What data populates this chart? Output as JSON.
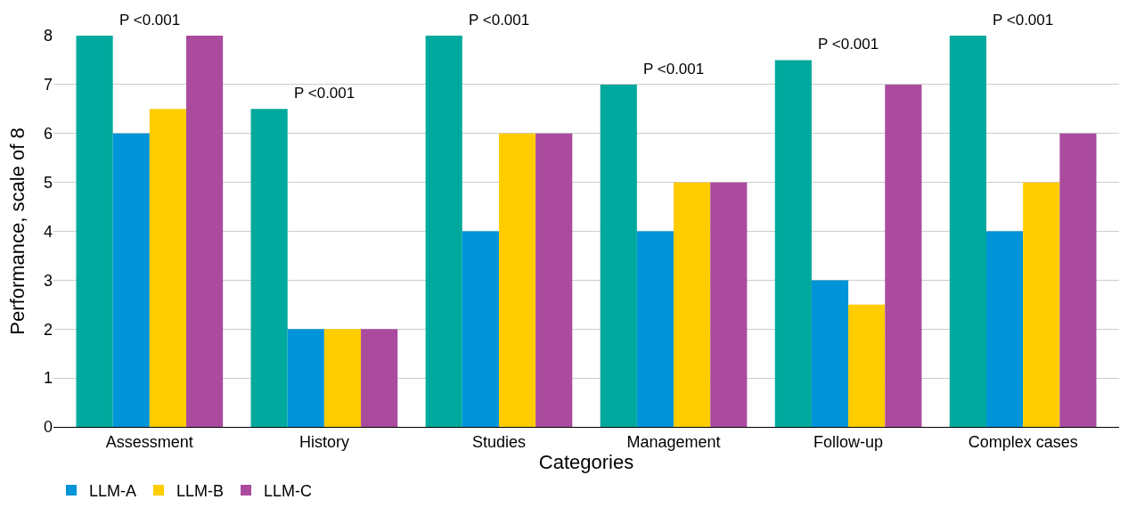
{
  "chart_data": {
    "type": "bar",
    "xlabel": "Categories",
    "ylabel": "Performance, scale of 8",
    "categories": [
      "Assessment",
      "History",
      "Studies",
      "Management",
      "Follow-up",
      "Complex cases"
    ],
    "series": [
      {
        "color": "#00a99d",
        "values": [
          8,
          6.5,
          8,
          7,
          7.5,
          8
        ]
      },
      {
        "name": "LLM-A",
        "color": "#0094d8",
        "values": [
          6,
          2,
          4,
          4,
          3,
          4
        ]
      },
      {
        "name": "LLM-B",
        "color": "#ffcc00",
        "values": [
          6.5,
          2,
          6,
          5,
          2.5,
          5
        ]
      },
      {
        "name": "LLM-C",
        "color": "#aa4b9e",
        "values": [
          8,
          2,
          6,
          5,
          7,
          6
        ]
      }
    ],
    "ylim": [
      0,
      8
    ],
    "yticks": [
      0,
      1,
      2,
      3,
      4,
      5,
      6,
      7,
      8
    ],
    "grid": "y",
    "legend": "bottom left",
    "annotations": [
      "P <0.001",
      "P <0.001",
      "P <0.001",
      "P <0.001",
      "P <0.001",
      "P <0.001"
    ]
  }
}
